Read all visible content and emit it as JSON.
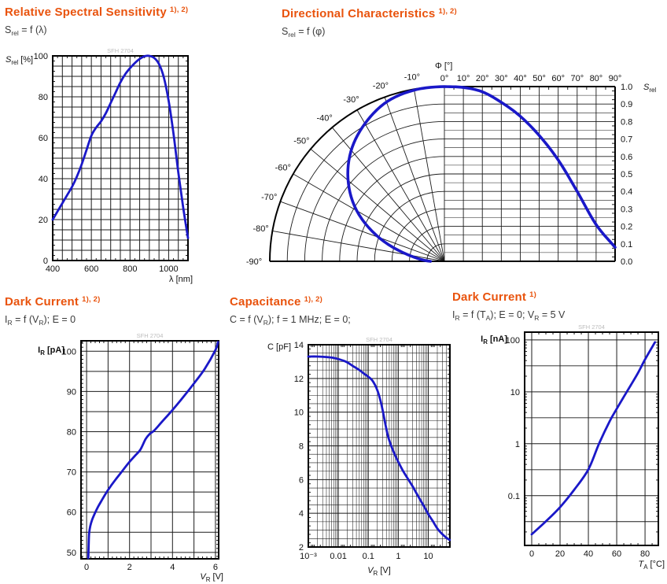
{
  "page": {
    "background": "#ffffff"
  },
  "colors": {
    "accent_orange": "#e9530d",
    "curve_blue": "#1a18c8",
    "grid": "#1c1c1c",
    "frame": "#000000",
    "tick_text": "#111111",
    "subtitle_text": "#3b3b3b",
    "watermark": "#bcbcbc"
  },
  "chart_data": [
    {
      "id": "relative_spectral_sensitivity",
      "type": "line",
      "title": "Relative Spectral Sensitivity",
      "title_note": "1), 2)",
      "subtitle_segments": [
        {
          "t": "S"
        },
        {
          "sub": "rel"
        },
        {
          "t": " = f (λ)"
        }
      ],
      "watermark": "SFH 2704",
      "ylabel": "S rel [%]",
      "xlabel": "λ [nm]",
      "ylabel_segments": [
        {
          "t": "S",
          "i": true
        },
        {
          "sub": "rel"
        },
        {
          "t": " [%]"
        }
      ],
      "xlabel_segments": [
        {
          "t": "λ [nm]"
        }
      ],
      "xlim": [
        400,
        1100
      ],
      "ylim": [
        0,
        100
      ],
      "xticks": {
        "values": [
          400,
          600,
          800,
          1000
        ],
        "labels": [
          "400",
          "600",
          "800",
          "1000"
        ]
      },
      "yticks": {
        "values": [
          0,
          20,
          40,
          60,
          80,
          100
        ],
        "labels": [
          "0",
          "20",
          "40",
          "60",
          "80",
          "100"
        ]
      },
      "grid": {
        "x_major": 50,
        "y_major": 5
      },
      "x": [
        400,
        425,
        450,
        475,
        500,
        525,
        550,
        575,
        600,
        625,
        650,
        675,
        700,
        725,
        750,
        775,
        800,
        825,
        850,
        875,
        900,
        925,
        950,
        975,
        1000,
        1025,
        1050,
        1075,
        1100
      ],
      "y": [
        20,
        24,
        28,
        32,
        36,
        41,
        47,
        54,
        61,
        65,
        68,
        72,
        77,
        82,
        87,
        91,
        94,
        96.5,
        98.5,
        99.8,
        100,
        99,
        96,
        89.5,
        78,
        62,
        43,
        26,
        11
      ]
    },
    {
      "id": "directional_characteristics",
      "type": "polar_line",
      "title": "Directional Characteristics",
      "title_note": "1), 2)",
      "subtitle_segments": [
        {
          "t": "S"
        },
        {
          "sub": "rel"
        },
        {
          "t": " = f (φ)"
        }
      ],
      "angle_axis_label_segments": [
        {
          "t": "Φ [°]"
        }
      ],
      "radial_axis_label_segments": [
        {
          "t": "S",
          "i": true
        },
        {
          "sub": "rel"
        }
      ],
      "angle_ticks_top": [
        "0°",
        "10°",
        "20°",
        "30°",
        "40°",
        "50°",
        "60°",
        "70°",
        "80°",
        "90°"
      ],
      "angle_ticks_arc": [
        "-10°",
        "-20°",
        "-30°",
        "-40°",
        "-50°",
        "-60°",
        "-70°",
        "-80°",
        "-90°"
      ],
      "radial_ticks": [
        "0.0",
        "0.1",
        "0.2",
        "0.3",
        "0.4",
        "0.5",
        "0.6",
        "0.7",
        "0.8",
        "0.9",
        "1.0"
      ],
      "angles_deg": [
        0,
        10,
        20,
        30,
        40,
        50,
        60,
        70,
        80,
        90
      ],
      "values": [
        1.0,
        0.995,
        0.97,
        0.91,
        0.83,
        0.72,
        0.58,
        0.4,
        0.21,
        0.08
      ],
      "mirrored_left_lobe": true
    },
    {
      "id": "dark_current_vs_reverse_voltage",
      "type": "line",
      "title": "Dark Current",
      "title_note": "1), 2)",
      "subtitle_segments": [
        {
          "t": "I"
        },
        {
          "sub": "R"
        },
        {
          "t": " = f (V"
        },
        {
          "sub": "R"
        },
        {
          "t": "); E = 0"
        }
      ],
      "watermark": "SFH 2704",
      "ylabel": "I R [pA]",
      "xlabel": "V R [V]",
      "ylabel_segments": [
        {
          "t": "I"
        },
        {
          "sub": "R"
        },
        {
          "t": " [pA]"
        }
      ],
      "xlabel_segments": [
        {
          "t": "V",
          "i": true
        },
        {
          "sub": "R"
        },
        {
          "t": " [V]"
        }
      ],
      "xlim": [
        -0.26,
        6.15
      ],
      "ylim": [
        48.4,
        102.6
      ],
      "xticks": {
        "values": [
          0,
          2,
          4,
          6
        ],
        "labels": [
          "0",
          "2",
          "4",
          "6"
        ]
      },
      "yticks": {
        "values": [
          50,
          60,
          70,
          80,
          90,
          100
        ],
        "labels": [
          "50",
          "60",
          "70",
          "80",
          "90",
          "100"
        ]
      },
      "grid": {
        "x_major": 1,
        "y_major": 5
      },
      "x": [
        0.08,
        0.1,
        0.12,
        0.17,
        0.25,
        0.35,
        0.5,
        0.7,
        0.9,
        1.1,
        1.35,
        1.6,
        1.95,
        2.25,
        2.5,
        2.75,
        2.95,
        3.15,
        3.5,
        4,
        4.5,
        5,
        5.5,
        6,
        6.12
      ],
      "y": [
        48.6,
        52.5,
        54.8,
        56.5,
        58,
        59.3,
        61,
        62.9,
        64.7,
        66.3,
        68.1,
        69.8,
        72.2,
        74,
        75.5,
        78.2,
        79.5,
        80.3,
        82.4,
        85.4,
        88.6,
        92,
        95.6,
        100.3,
        102.3
      ]
    },
    {
      "id": "capacitance_vs_reverse_voltage",
      "type": "line",
      "title": "Capacitance",
      "title_note": "1), 2)",
      "subtitle_segments": [
        {
          "t": "C = f (V"
        },
        {
          "sub": "R"
        },
        {
          "t": "); f = 1 MHz; E = 0;"
        }
      ],
      "watermark": "SFH 2704",
      "ylabel": "C [pF]",
      "xlabel": "V R [V]",
      "ylabel_segments": [
        {
          "t": "C [pF]"
        }
      ],
      "xlabel_segments": [
        {
          "t": "V",
          "i": true
        },
        {
          "sub": "R"
        },
        {
          "t": " [V]"
        }
      ],
      "xscale": "log",
      "xlim": [
        0.001,
        52.6
      ],
      "ylim": [
        2,
        14
      ],
      "xticks": {
        "values": [
          0.001,
          0.01,
          0.1,
          1,
          10
        ],
        "labels": [
          "10⁻³",
          "0.01",
          "0.1",
          "1",
          "10"
        ]
      },
      "yticks": {
        "values": [
          2,
          4,
          6,
          8,
          10,
          12,
          14
        ],
        "labels": [
          "2",
          "4",
          "6",
          "8",
          "10",
          "12",
          "14"
        ]
      },
      "grid": {
        "y_minor": 0.5,
        "y_major": 2
      },
      "x": [
        0.001,
        0.002,
        0.004,
        0.007,
        0.01,
        0.015,
        0.02,
        0.03,
        0.05,
        0.07,
        0.1,
        0.14,
        0.2,
        0.27,
        0.37,
        0.45,
        0.58,
        0.8,
        1,
        1.4,
        2,
        3,
        4,
        5,
        7,
        10,
        14,
        20,
        28,
        40,
        52
      ],
      "y": [
        13.3,
        13.3,
        13.27,
        13.22,
        13.15,
        13.05,
        12.95,
        12.75,
        12.5,
        12.3,
        12.1,
        11.85,
        11.3,
        10.5,
        9.3,
        8.6,
        8.0,
        7.4,
        7.05,
        6.55,
        6.1,
        5.6,
        5.2,
        4.9,
        4.45,
        3.95,
        3.55,
        3.1,
        2.8,
        2.55,
        2.42
      ]
    },
    {
      "id": "dark_current_vs_ambient_temperature",
      "type": "line",
      "title": "Dark Current",
      "title_note": "1)",
      "subtitle_segments": [
        {
          "t": "I"
        },
        {
          "sub": "R"
        },
        {
          "t": " = f (T"
        },
        {
          "sub": "A"
        },
        {
          "t": "); E = 0; V"
        },
        {
          "sub": "R"
        },
        {
          "t": " = 5 V"
        }
      ],
      "watermark": "SFH 2704",
      "ylabel": "I R [nA]",
      "xlabel": "T A [°C]",
      "ylabel_segments": [
        {
          "t": "I"
        },
        {
          "sub": "R"
        },
        {
          "t": " [nA]"
        }
      ],
      "xlabel_segments": [
        {
          "t": "T",
          "i": true
        },
        {
          "sub": "A"
        },
        {
          "t": " [°C]"
        }
      ],
      "yscale": "log",
      "xlim": [
        -5,
        89.4
      ],
      "ylim": [
        0.011,
        141
      ],
      "xticks": {
        "values": [
          0,
          20,
          40,
          60,
          80
        ],
        "labels": [
          "0",
          "20",
          "40",
          "60",
          "80"
        ]
      },
      "yticks": {
        "values": [
          0.1,
          1,
          10,
          100
        ],
        "labels": [
          "0.1",
          "1",
          "10",
          "100"
        ]
      },
      "grid": {
        "x_major": 20,
        "y_log_half_decades": true
      },
      "x": [
        0,
        10,
        20,
        30,
        40,
        47.5,
        55,
        60,
        65,
        70,
        75,
        80,
        87
      ],
      "y": [
        0.018,
        0.032,
        0.06,
        0.13,
        0.32,
        1.0,
        2.7,
        4.7,
        8,
        13.5,
        23,
        42,
        90
      ]
    }
  ]
}
